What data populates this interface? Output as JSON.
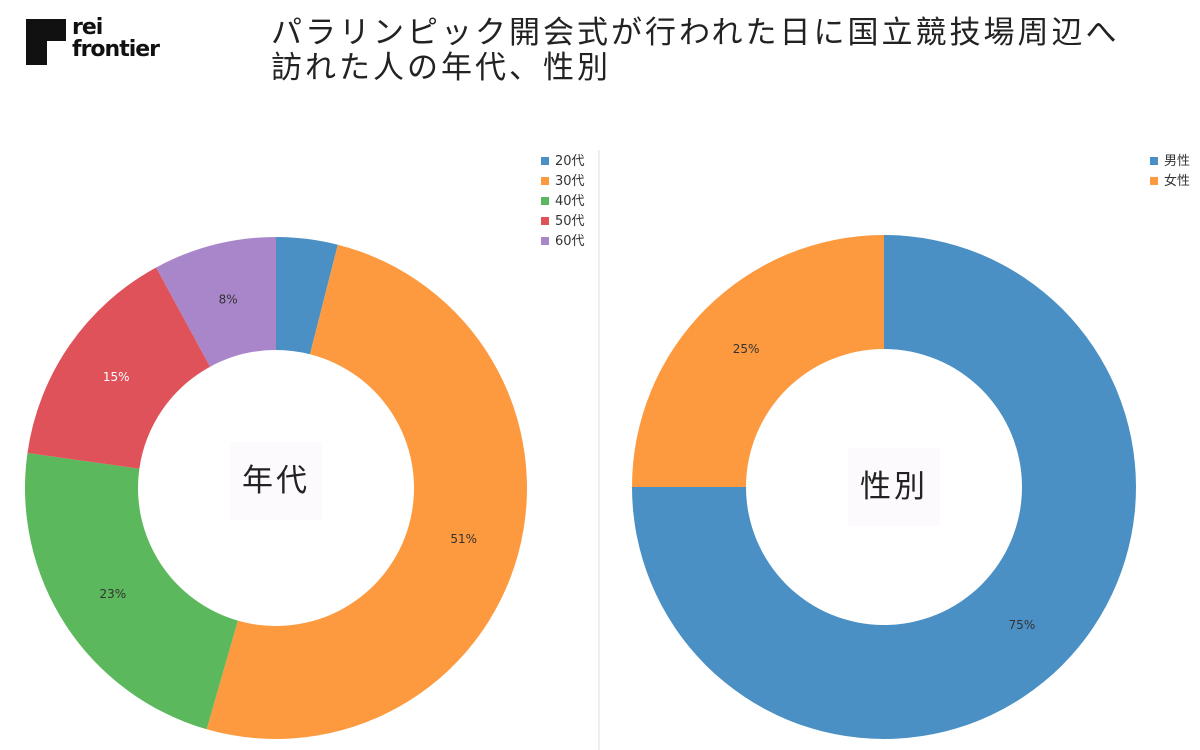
{
  "logo": {
    "line1": "rei",
    "line2": "frontier"
  },
  "title": {
    "line1": "パラリンピック開会式が行われた日に国立競技場周辺へ",
    "line2": "訪れた人の年代、性別"
  },
  "chart_data": [
    {
      "type": "pie",
      "center_label": "年代",
      "categories": [
        "20代",
        "30代",
        "40代",
        "50代",
        "60代"
      ],
      "values": [
        4,
        51,
        23,
        15,
        8
      ],
      "data_labels": [
        "",
        "51%",
        "23%",
        "15%",
        "8%"
      ],
      "colors": [
        "#4a90c4",
        "#fd9a3f",
        "#5cb85c",
        "#df525a",
        "#a886c9"
      ],
      "label_colors": [
        "#333333",
        "#333333",
        "#333333",
        "#ffffff",
        "#333333"
      ],
      "legend_position": "top-right"
    },
    {
      "type": "pie",
      "center_label": "性別",
      "categories": [
        "男性",
        "女性"
      ],
      "values": [
        75,
        25
      ],
      "data_labels": [
        "75%",
        "25%"
      ],
      "colors": [
        "#4a90c4",
        "#fd9a3f"
      ],
      "label_colors": [
        "#333333",
        "#333333"
      ],
      "legend_position": "top-right"
    }
  ]
}
